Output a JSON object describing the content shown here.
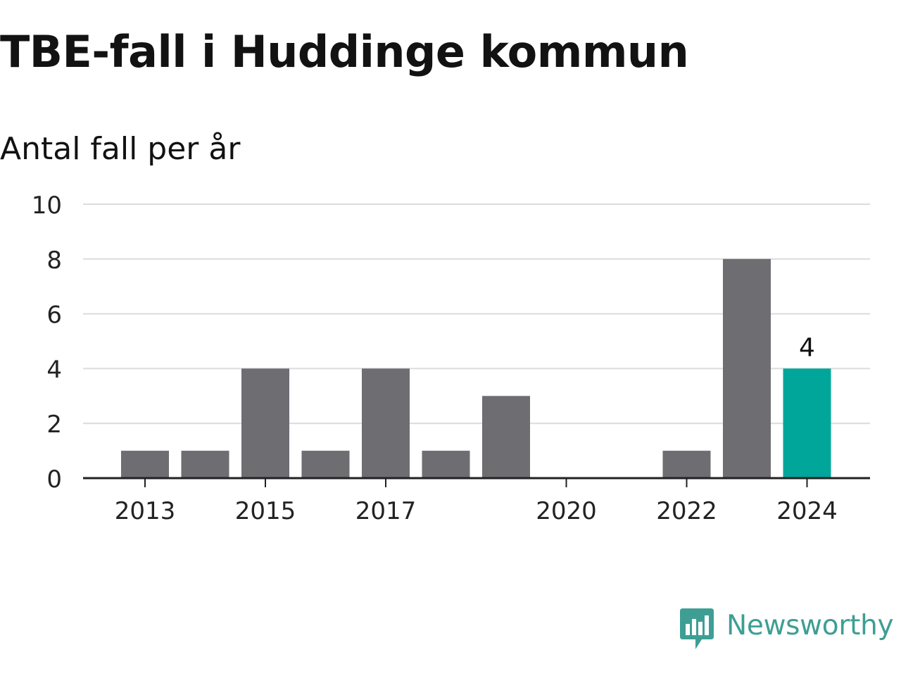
{
  "title": "TBE-fall i Huddinge kommun",
  "subtitle": "Antal fall per år",
  "brand": {
    "name": "Newsworthy",
    "icon": "newsworthy-logo-icon",
    "color": "#3e9e94"
  },
  "colors": {
    "bar": "#6e6d72",
    "highlight": "#00a69a",
    "grid": "#dcdcdc",
    "axis": "#222222",
    "text": "#222222"
  },
  "chart_data": {
    "type": "bar",
    "title": "TBE-fall i Huddinge kommun",
    "subtitle": "Antal fall per år",
    "x": [
      2013,
      2014,
      2015,
      2016,
      2017,
      2018,
      2019,
      2020,
      2021,
      2022,
      2023,
      2024
    ],
    "values": [
      1,
      1,
      4,
      1,
      4,
      1,
      3,
      0,
      0,
      1,
      8,
      4
    ],
    "x_tick_labels": [
      "2013",
      "2015",
      "2017",
      "2020",
      "2022",
      "2024"
    ],
    "y_ticks": [
      0,
      2,
      4,
      6,
      8,
      10
    ],
    "ylim": [
      0,
      10
    ],
    "grid": true,
    "highlight": {
      "x": 2024,
      "label": "4"
    },
    "xlabel": "",
    "ylabel": ""
  }
}
